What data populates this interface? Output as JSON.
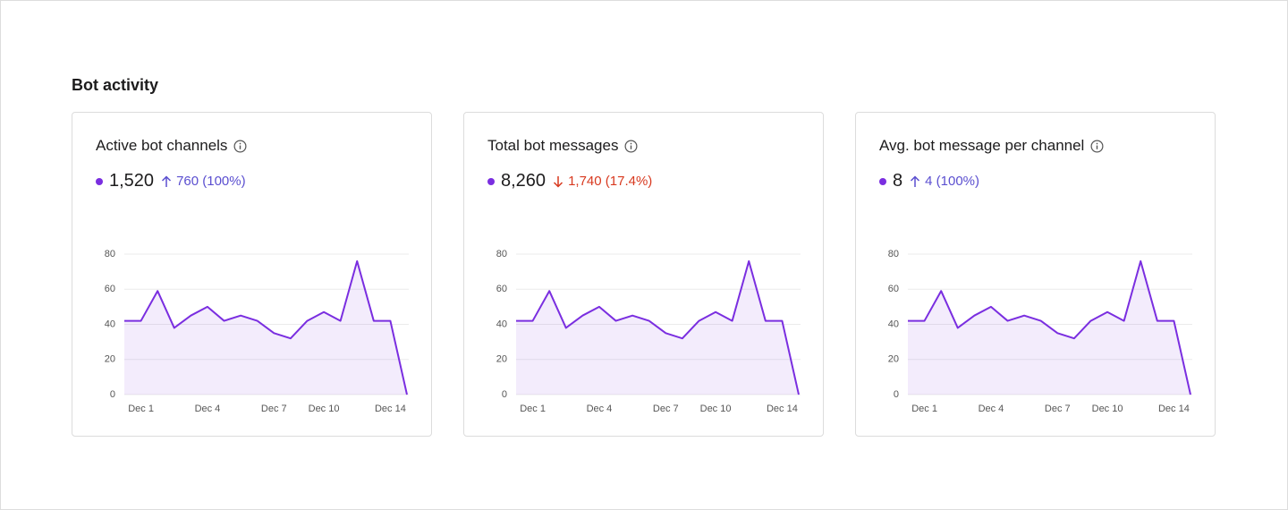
{
  "section_title": "Bot activity",
  "chart_data": [
    {
      "type": "line",
      "title": "Active bot channels",
      "summary_value": "1,520",
      "change": "760 (100%)",
      "trend": "up",
      "categories": [
        null,
        "Dec 1",
        null,
        null,
        null,
        "Dec 4",
        null,
        null,
        null,
        "Dec 7",
        null,
        null,
        "Dec 10",
        null,
        null,
        null,
        "Dec 14",
        null
      ],
      "values": [
        42,
        42,
        59,
        38,
        45,
        50,
        42,
        45,
        42,
        35,
        32,
        42,
        47,
        42,
        76,
        42,
        42,
        0
      ],
      "color": "#7a2ee0",
      "ylim": [
        0,
        80
      ],
      "yticks": [
        0,
        20,
        40,
        60,
        80
      ],
      "grid": true
    },
    {
      "type": "line",
      "title": "Total bot messages",
      "summary_value": "8,260",
      "change": "1,740 (17.4%)",
      "trend": "down",
      "categories": [
        null,
        "Dec 1",
        null,
        null,
        null,
        "Dec 4",
        null,
        null,
        null,
        "Dec 7",
        null,
        null,
        "Dec 10",
        null,
        null,
        null,
        "Dec 14",
        null
      ],
      "values": [
        42,
        42,
        59,
        38,
        45,
        50,
        42,
        45,
        42,
        35,
        32,
        42,
        47,
        42,
        76,
        42,
        42,
        0
      ],
      "color": "#7a2ee0",
      "ylim": [
        0,
        80
      ],
      "yticks": [
        0,
        20,
        40,
        60,
        80
      ],
      "grid": true
    },
    {
      "type": "line",
      "title": "Avg. bot message per channel",
      "summary_value": "8",
      "change": "4 (100%)",
      "trend": "up",
      "categories": [
        null,
        "Dec 1",
        null,
        null,
        null,
        "Dec 4",
        null,
        null,
        null,
        "Dec 7",
        null,
        null,
        "Dec 10",
        null,
        null,
        null,
        "Dec 14",
        null
      ],
      "values": [
        42,
        42,
        59,
        38,
        45,
        50,
        42,
        45,
        42,
        35,
        32,
        42,
        47,
        42,
        76,
        42,
        42,
        0
      ],
      "color": "#7a2ee0",
      "ylim": [
        0,
        80
      ],
      "yticks": [
        0,
        20,
        40,
        60,
        80
      ],
      "grid": true
    }
  ]
}
